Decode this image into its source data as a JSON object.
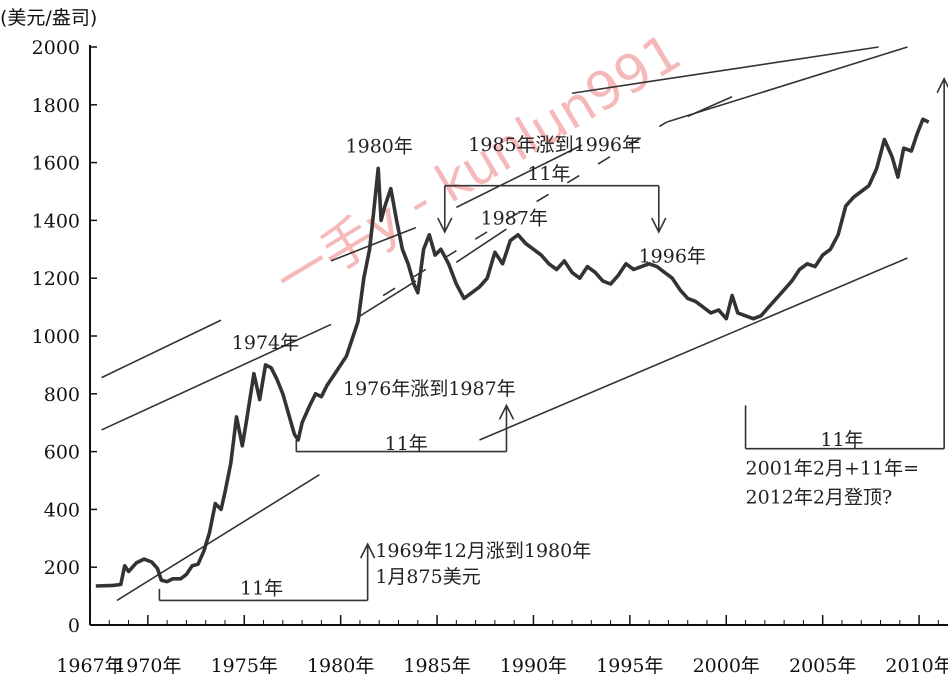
{
  "chart_data": {
    "type": "line",
    "ylabel": "(美元/盎司)",
    "ylim": [
      0,
      2000
    ],
    "yticks": [
      "0",
      "200",
      "400",
      "600",
      "800",
      "1000",
      "1200",
      "1400",
      "1600",
      "1800",
      "2000"
    ],
    "xlim": [
      1967,
      2011.5
    ],
    "xticks": [
      {
        "value": 1967,
        "label": "1967年"
      },
      {
        "value": 1970,
        "label": "1970年"
      },
      {
        "value": 1975,
        "label": "1975年"
      },
      {
        "value": 1980,
        "label": "1980年"
      },
      {
        "value": 1985,
        "label": "1985年"
      },
      {
        "value": 1990,
        "label": "1990年"
      },
      {
        "value": 1995,
        "label": "1995年"
      },
      {
        "value": 2000,
        "label": "2000年"
      },
      {
        "value": 2005,
        "label": "2005年"
      },
      {
        "value": 2010,
        "label": "2010年"
      }
    ],
    "grid": false,
    "series": [
      {
        "color": "#333333",
        "points": [
          [
            1967.3,
            135
          ],
          [
            1968.2,
            137
          ],
          [
            1968.6,
            140
          ],
          [
            1968.8,
            205
          ],
          [
            1969.0,
            185
          ],
          [
            1969.4,
            215
          ],
          [
            1969.8,
            228
          ],
          [
            1970.2,
            218
          ],
          [
            1970.5,
            195
          ],
          [
            1970.7,
            155
          ],
          [
            1971.0,
            150
          ],
          [
            1971.3,
            160
          ],
          [
            1971.7,
            160
          ],
          [
            1972.0,
            175
          ],
          [
            1972.3,
            205
          ],
          [
            1972.6,
            210
          ],
          [
            1972.9,
            255
          ],
          [
            1973.2,
            320
          ],
          [
            1973.5,
            420
          ],
          [
            1973.8,
            400
          ],
          [
            1974.0,
            460
          ],
          [
            1974.3,
            560
          ],
          [
            1974.6,
            720
          ],
          [
            1974.9,
            620
          ],
          [
            1975.1,
            700
          ],
          [
            1975.5,
            870
          ],
          [
            1975.8,
            780
          ],
          [
            1976.1,
            900
          ],
          [
            1976.4,
            890
          ],
          [
            1976.7,
            850
          ],
          [
            1977.0,
            800
          ],
          [
            1977.3,
            730
          ],
          [
            1977.6,
            660
          ],
          [
            1977.8,
            640
          ],
          [
            1978.0,
            700
          ],
          [
            1978.4,
            760
          ],
          [
            1978.7,
            800
          ],
          [
            1979.0,
            790
          ],
          [
            1979.3,
            830
          ],
          [
            1979.7,
            870
          ],
          [
            1980.0,
            900
          ],
          [
            1980.3,
            930
          ],
          [
            1980.6,
            990
          ],
          [
            1980.9,
            1050
          ],
          [
            1981.2,
            1200
          ],
          [
            1981.5,
            1300
          ],
          [
            1981.7,
            1420
          ],
          [
            1981.95,
            1580
          ],
          [
            1982.1,
            1400
          ],
          [
            1982.3,
            1450
          ],
          [
            1982.6,
            1510
          ],
          [
            1982.9,
            1400
          ],
          [
            1983.2,
            1300
          ],
          [
            1983.5,
            1250
          ],
          [
            1983.8,
            1180
          ],
          [
            1984.0,
            1150
          ],
          [
            1984.3,
            1300
          ],
          [
            1984.6,
            1350
          ],
          [
            1984.9,
            1280
          ],
          [
            1985.2,
            1300
          ],
          [
            1985.6,
            1250
          ],
          [
            1986.0,
            1180
          ],
          [
            1986.4,
            1130
          ],
          [
            1986.8,
            1150
          ],
          [
            1987.2,
            1170
          ],
          [
            1987.6,
            1200
          ],
          [
            1988.0,
            1290
          ],
          [
            1988.4,
            1250
          ],
          [
            1988.8,
            1330
          ],
          [
            1989.2,
            1350
          ],
          [
            1989.6,
            1320
          ],
          [
            1990.0,
            1300
          ],
          [
            1990.4,
            1280
          ],
          [
            1990.8,
            1250
          ],
          [
            1991.2,
            1230
          ],
          [
            1991.6,
            1260
          ],
          [
            1992.0,
            1220
          ],
          [
            1992.4,
            1200
          ],
          [
            1992.8,
            1240
          ],
          [
            1993.2,
            1220
          ],
          [
            1993.6,
            1190
          ],
          [
            1994.0,
            1180
          ],
          [
            1994.4,
            1210
          ],
          [
            1994.8,
            1250
          ],
          [
            1995.2,
            1230
          ],
          [
            1995.6,
            1240
          ],
          [
            1996.0,
            1250
          ],
          [
            1996.4,
            1240
          ],
          [
            1996.8,
            1220
          ],
          [
            1997.2,
            1200
          ],
          [
            1997.6,
            1160
          ],
          [
            1998.0,
            1130
          ],
          [
            1998.4,
            1120
          ],
          [
            1998.8,
            1100
          ],
          [
            1999.2,
            1080
          ],
          [
            1999.6,
            1090
          ],
          [
            2000.0,
            1060
          ],
          [
            2000.3,
            1140
          ],
          [
            2000.6,
            1080
          ],
          [
            2001.0,
            1070
          ],
          [
            2001.4,
            1060
          ],
          [
            2001.8,
            1070
          ],
          [
            2002.2,
            1100
          ],
          [
            2002.6,
            1130
          ],
          [
            2003.0,
            1160
          ],
          [
            2003.4,
            1190
          ],
          [
            2003.8,
            1230
          ],
          [
            2004.2,
            1250
          ],
          [
            2004.6,
            1240
          ],
          [
            2005.0,
            1280
          ],
          [
            2005.4,
            1300
          ],
          [
            2005.8,
            1350
          ],
          [
            2006.2,
            1450
          ],
          [
            2006.6,
            1480
          ],
          [
            2007.0,
            1500
          ],
          [
            2007.4,
            1520
          ],
          [
            2007.8,
            1580
          ],
          [
            2008.2,
            1680
          ],
          [
            2008.6,
            1620
          ],
          [
            2008.9,
            1550
          ],
          [
            2009.2,
            1650
          ],
          [
            2009.6,
            1640
          ],
          [
            2009.9,
            1700
          ],
          [
            2010.2,
            1750
          ],
          [
            2010.5,
            1740
          ]
        ]
      }
    ],
    "channel_lines": [
      {
        "style": "solid",
        "from": [
          1967.6,
          856
        ],
        "to": [
          1973.8,
          1055
        ]
      },
      {
        "style": "solid",
        "from": [
          1979.5,
          1260
        ],
        "to": [
          1983.9,
          1375
        ]
      },
      {
        "style": "solid",
        "from": [
          1986.0,
          1445
        ],
        "to": [
          1992.5,
          1660
        ]
      },
      {
        "style": "solid",
        "from": [
          1992.0,
          1840
        ],
        "to": [
          2007.9,
          2000
        ]
      },
      {
        "style": "solid",
        "from": [
          1967.6,
          675
        ],
        "to": [
          1979.5,
          1040
        ]
      },
      {
        "style": "solid",
        "from": [
          1980.9,
          1065
        ],
        "to": [
          1983.9,
          1190
        ]
      },
      {
        "style": "solid",
        "from": [
          1986.0,
          1255
        ],
        "to": [
          1988.6,
          1370
        ]
      },
      {
        "style": "solid",
        "from": [
          1996.9,
          1740
        ],
        "to": [
          2009.4,
          2000
        ]
      },
      {
        "style": "solid",
        "from": [
          1998.0,
          1760
        ],
        "to": [
          2000.3,
          1828
        ]
      },
      {
        "style": "solid",
        "from": [
          1968.4,
          85
        ],
        "to": [
          1978.9,
          520
        ]
      },
      {
        "style": "solid",
        "from": [
          1987.2,
          640
        ],
        "to": [
          2009.4,
          1270
        ]
      },
      {
        "style": "dashed",
        "from": [
          1982.2,
          1140
        ],
        "to": [
          1996.9,
          1740
        ]
      }
    ],
    "spans": [
      {
        "label": "11年",
        "from": 1970.6,
        "to": 1981.4,
        "base": 85,
        "ticks_to": 125,
        "arrow_at": 1981.4,
        "arrow_to": 280
      },
      {
        "label": "11年",
        "from": 1977.7,
        "to": 1988.6,
        "base": 600,
        "ticks_to": 640,
        "arrow_at": 1988.6,
        "arrow_to": 760
      },
      {
        "label": "11年",
        "from": 1985.4,
        "to": 1996.5,
        "base": 1520,
        "ticks_to": 1360,
        "arrow_down": true
      },
      {
        "label": "11年",
        "from": 2001.0,
        "to": 2011.3,
        "base": 610,
        "ticks_to": 760,
        "arrow_at": 2011.3,
        "arrow_to": 1890
      }
    ],
    "annotations": [
      {
        "text": "1974年",
        "x": 1976.1,
        "y": 955
      },
      {
        "text": "1980年",
        "x": 1982.0,
        "y": 1635
      },
      {
        "text": "1987年",
        "x": 1989.0,
        "y": 1385
      },
      {
        "text": "1996年",
        "x": 1997.2,
        "y": 1255
      },
      {
        "text": "1985年涨到1996年",
        "x": 1991.1,
        "y": 1640
      },
      {
        "text": "11年",
        "x": 1990.8,
        "y": 1540
      },
      {
        "text": "1976年涨到1987年",
        "x": 1984.6,
        "y": 795
      },
      {
        "text": "11年",
        "x": 1983.4,
        "y": 605
      },
      {
        "text": "1969年12月涨到1980年",
        "x": 1981.8,
        "y": 235,
        "anchor": "start"
      },
      {
        "text": "1月875美元",
        "x": 1981.8,
        "y": 145,
        "anchor": "start"
      },
      {
        "text": "11年",
        "x": 1975.9,
        "y": 105
      },
      {
        "text": "11年",
        "x": 2006.0,
        "y": 620
      },
      {
        "text": "2001年2月+11年=",
        "x": 2001.0,
        "y": 520,
        "anchor": "start"
      },
      {
        "text": "2012年2月登顶?",
        "x": 2001.0,
        "y": 420,
        "anchor": "start"
      }
    ]
  },
  "watermark": "一手y - kunlun991"
}
